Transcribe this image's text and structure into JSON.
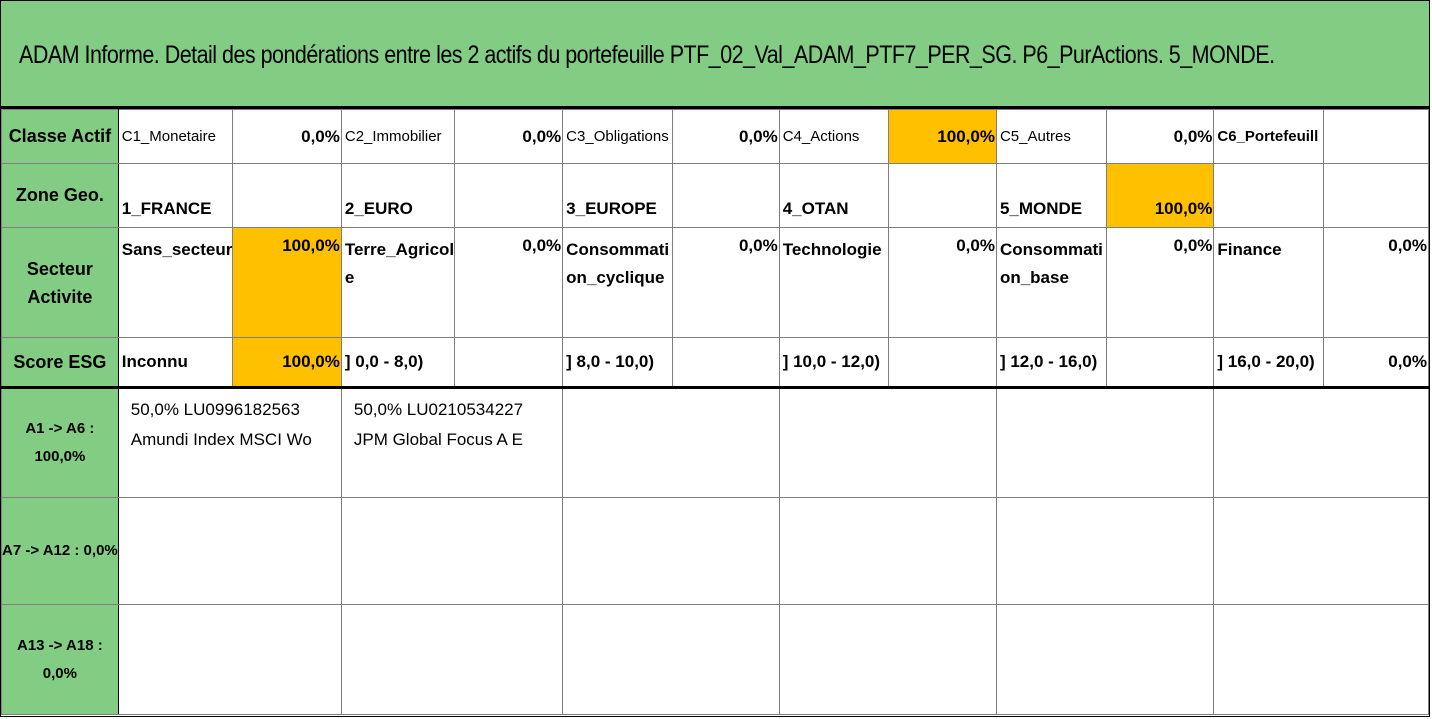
{
  "title": "ADAM Informe. Detail des pondérations entre les 2 actifs du portefeuille PTF_02_Val_ADAM_PTF7_PER_SG. P6_PurActions. 5_MONDE.",
  "colors": {
    "header_green": "#83CC83",
    "highlight": "#FFC000"
  },
  "classe_actif": {
    "header": "Classe Actif",
    "items": [
      {
        "label": "C1_Monetaire",
        "value": "0,0%"
      },
      {
        "label": "C2_Immobilier",
        "value": "0,0%"
      },
      {
        "label": "C3_Obligations",
        "value": "0,0%"
      },
      {
        "label": "C4_Actions",
        "value": "100,0%"
      },
      {
        "label": "C5_Autres",
        "value": "0,0%"
      },
      {
        "label": "C6_Portefeuill",
        "value": ""
      }
    ]
  },
  "zone_geo": {
    "header": "Zone Geo.",
    "items": [
      {
        "label": "1_FRANCE",
        "value": ""
      },
      {
        "label": "2_EURO",
        "value": ""
      },
      {
        "label": "3_EUROPE",
        "value": ""
      },
      {
        "label": "4_OTAN",
        "value": ""
      },
      {
        "label": "5_MONDE",
        "value": "100,0%"
      },
      {
        "label": "",
        "value": ""
      }
    ]
  },
  "secteur": {
    "header_line1": "Secteur",
    "header_line2": "Activite",
    "items": [
      {
        "line1": "Sans_secteur",
        "line2": "",
        "value": "100,0%"
      },
      {
        "line1": "Terre_Agricol",
        "line2": "e",
        "value": "0,0%"
      },
      {
        "line1": "Consommati",
        "line2": "on_cyclique",
        "value": "0,0%"
      },
      {
        "line1": "Technologie",
        "line2": "",
        "value": "0,0%"
      },
      {
        "line1": "Consommati",
        "line2": "on_base",
        "value": "0,0%"
      },
      {
        "line1": "Finance",
        "line2": "",
        "value": "0,0%"
      }
    ]
  },
  "score_esg": {
    "header": "Score ESG",
    "items": [
      {
        "label": "Inconnu",
        "value": "100,0%"
      },
      {
        "label": "] 0,0 - 8,0)",
        "value": ""
      },
      {
        "label": "] 8,0 - 10,0)",
        "value": ""
      },
      {
        "label": "] 10,0 - 12,0)",
        "value": ""
      },
      {
        "label": "] 12,0 - 16,0)",
        "value": ""
      },
      {
        "label": "] 16,0 - 20,0)",
        "value": "0,0%"
      }
    ]
  },
  "assets": {
    "groups": [
      {
        "line1": "A1 -> A6 :",
        "line2": "100,0%",
        "items": [
          {
            "line1": "50,0% LU0996182563",
            "line2": "Amundi Index MSCI Wo"
          },
          {
            "line1": "50,0% LU0210534227",
            "line2": "JPM Global Focus A E"
          }
        ]
      },
      {
        "line1": "A7 -> A12 : 0,0%",
        "line2": "",
        "items": []
      },
      {
        "line1": "A13 -> A18 :",
        "line2": "0,0%",
        "items": []
      }
    ]
  }
}
